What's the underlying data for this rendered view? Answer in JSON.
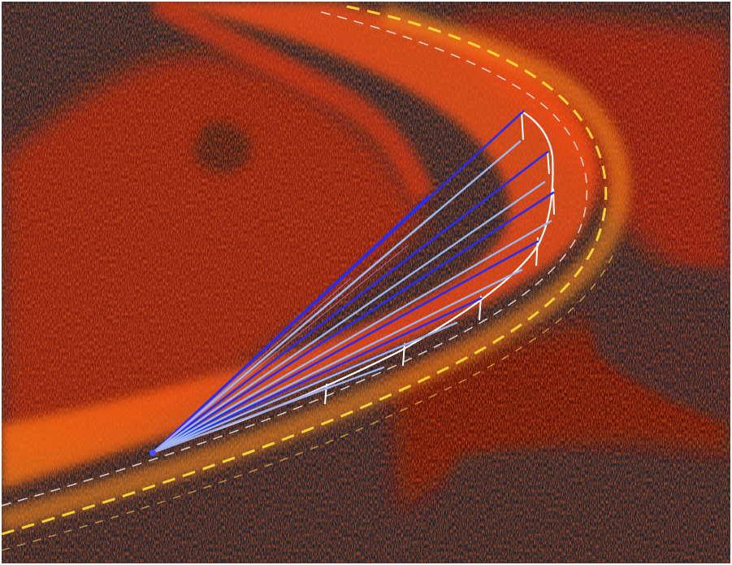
{
  "image": {
    "subject": "lidar-point-cloud-curved-road-with-sight-lines",
    "palette": {
      "background": "#1f2530",
      "cloud_dark": "#7a1206",
      "cloud_mid": "#e0300c",
      "cloud_bright": "#ff6a1a",
      "road_glow": "#ffa21e",
      "lane_yellow": "#ffe23a",
      "guide_white": "#ffffff",
      "sight_blue": "#2a2cf0",
      "sight_lightblue": "#9ab8ee"
    }
  }
}
